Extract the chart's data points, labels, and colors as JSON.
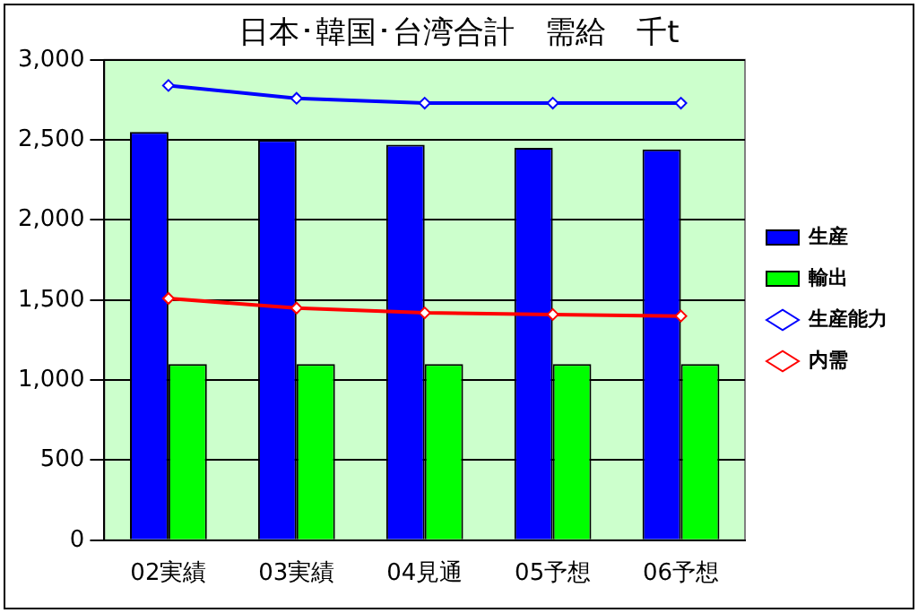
{
  "chart_data": {
    "type": "bar",
    "title": "日本･韓国･台湾合計　需給　千t",
    "categories": [
      "02実績",
      "03実績",
      "04見通",
      "05予想",
      "06予想"
    ],
    "series": [
      {
        "name": "生産",
        "color": "#0000ff",
        "values": [
          2550,
          2500,
          2470,
          2450,
          2440
        ]
      },
      {
        "name": "輸出",
        "color": "#00ff00",
        "values": [
          1100,
          1100,
          1100,
          1100,
          1100
        ]
      },
      {
        "name": "生産能力",
        "type": "line",
        "color": "#0000ff",
        "values": [
          2840,
          2760,
          2730,
          2730,
          2730
        ]
      },
      {
        "name": "内需",
        "type": "line",
        "color": "#ff0000",
        "values": [
          1510,
          1450,
          1420,
          1410,
          1400
        ]
      }
    ],
    "ylim": [
      0,
      3000
    ],
    "yticks": [
      0,
      500,
      {
        "value": 1000,
        "label": "1,000"
      },
      {
        "value": 1500,
        "label": "1,500"
      },
      {
        "value": 2000,
        "label": "2,000"
      },
      {
        "value": 2500,
        "label": "2,500"
      },
      {
        "value": 3000,
        "label": "3,000"
      }
    ],
    "grid": "y",
    "legend": "right",
    "marker": "diamond",
    "line_style": "solid"
  }
}
